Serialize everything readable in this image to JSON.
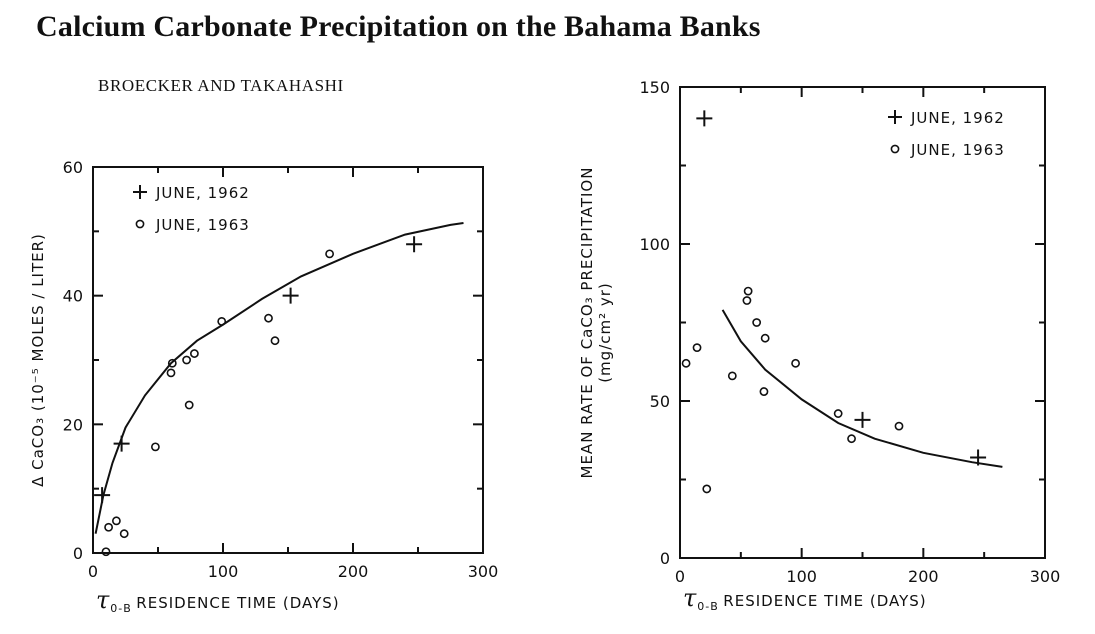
{
  "header": {
    "title": "Calcium Carbonate Precipitation on the Bahama Banks",
    "authors": "BROECKER AND TAKAHASHI"
  },
  "colors": {
    "ink": "#111111",
    "background": "#ffffff"
  },
  "chart_data": [
    {
      "type": "scatter",
      "xlabel_symbol": "τ",
      "xlabel_subscript": "0-B",
      "xlabel": "RESIDENCE TIME (DAYS)",
      "ylabel": "Δ CaCO₃ (10⁻⁵ MOLES / LITER)",
      "xlim": [
        0,
        300
      ],
      "ylim": [
        0,
        60
      ],
      "x_ticks": [
        0,
        100,
        200,
        300
      ],
      "y_ticks": [
        0,
        20,
        40,
        60
      ],
      "legend_position": "top-left",
      "series": [
        {
          "name": "JUNE, 1962",
          "marker": "plus",
          "points": [
            [
              7,
              9
            ],
            [
              22,
              17
            ],
            [
              152,
              40
            ],
            [
              247,
              48
            ]
          ]
        },
        {
          "name": "JUNE, 1963",
          "marker": "circle",
          "points": [
            [
              10,
              0.2
            ],
            [
              12,
              4
            ],
            [
              18,
              5
            ],
            [
              24,
              3
            ],
            [
              48,
              16.5
            ],
            [
              60,
              28
            ],
            [
              61,
              29.5
            ],
            [
              72,
              30
            ],
            [
              74,
              23
            ],
            [
              78,
              31
            ],
            [
              99,
              36
            ],
            [
              135,
              36.5
            ],
            [
              140,
              33
            ],
            [
              182,
              46.5
            ]
          ]
        }
      ],
      "fit_curve": {
        "x": [
          2,
          8,
          15,
          25,
          40,
          60,
          80,
          100,
          130,
          160,
          200,
          240,
          275,
          285
        ],
        "y": [
          3,
          9,
          14,
          19.5,
          24.5,
          29.5,
          33,
          35.5,
          39.5,
          43,
          46.5,
          49.5,
          51,
          51.3
        ]
      }
    },
    {
      "type": "scatter",
      "xlabel_symbol": "τ",
      "xlabel_subscript": "0-B",
      "xlabel": "RESIDENCE TIME (DAYS)",
      "ylabel": "MEAN RATE OF CaCO₃ PRECIPITATION",
      "ylabel_units": "(mg/cm² yr)",
      "xlim": [
        0,
        300
      ],
      "ylim": [
        0,
        150
      ],
      "x_ticks": [
        0,
        100,
        200,
        300
      ],
      "y_ticks": [
        0,
        50,
        100,
        150
      ],
      "legend_position": "top-right",
      "series": [
        {
          "name": "JUNE, 1962",
          "marker": "plus",
          "points": [
            [
              20,
              140
            ],
            [
              150,
              44
            ],
            [
              245,
              32
            ]
          ]
        },
        {
          "name": "JUNE, 1963",
          "marker": "circle",
          "points": [
            [
              5,
              62
            ],
            [
              14,
              67
            ],
            [
              22,
              22
            ],
            [
              43,
              58
            ],
            [
              55,
              82
            ],
            [
              56,
              85
            ],
            [
              63,
              75
            ],
            [
              69,
              53
            ],
            [
              70,
              70
            ],
            [
              95,
              62
            ],
            [
              130,
              46
            ],
            [
              141,
              38
            ],
            [
              180,
              42
            ]
          ]
        }
      ],
      "fit_curve": {
        "x": [
          35,
          50,
          70,
          100,
          130,
          160,
          200,
          240,
          265
        ],
        "y": [
          79,
          69,
          60,
          50.5,
          43,
          38,
          33.5,
          30.5,
          29
        ]
      }
    }
  ]
}
